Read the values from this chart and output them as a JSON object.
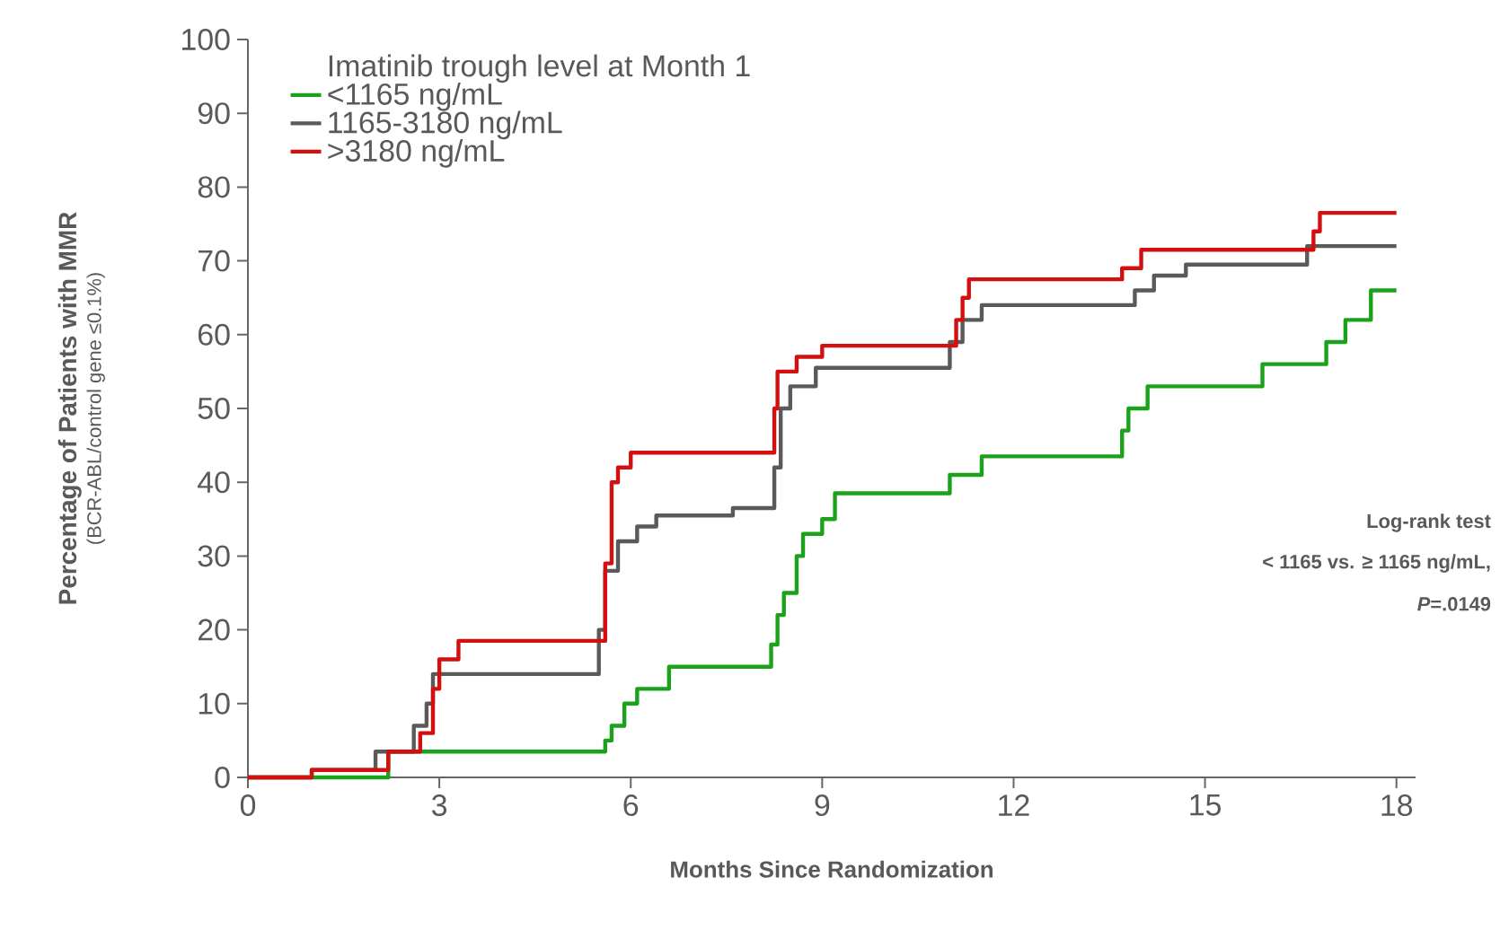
{
  "chart_data": {
    "type": "step",
    "xlabel": "Months Since Randomization",
    "ylabel": "Percentage of Patients with MMR",
    "legend_title": "Imatinib trough level at Month 1",
    "legend": "top left",
    "xlim": [
      0,
      18.3
    ],
    "ylim": [
      0,
      100
    ],
    "xticks": [
      0,
      3,
      6,
      9,
      12,
      15,
      18
    ],
    "yticks": [
      0,
      10,
      20,
      30,
      40,
      50,
      60,
      70,
      80,
      90,
      100
    ],
    "annotations": [
      "(BCR-ABL/control gene ≤0.1%)",
      "Log-rank test",
      "< 1165 vs. ≥ 1165 ng/mL,",
      "*P*=.0149"
    ],
    "series": [
      {
        "name": "<1165 ng/mL",
        "color": "#1aa31a",
        "x": [
          0,
          2.2,
          5.6,
          5.7,
          5.9,
          6.1,
          6.6,
          8.2,
          8.3,
          8.4,
          8.6,
          8.7,
          9.0,
          9.2,
          11.0,
          11.5,
          13.7,
          13.8,
          14.1,
          15.9,
          16.9,
          17.2,
          17.6,
          18
        ],
        "values": [
          0,
          3.5,
          5,
          7,
          10,
          12,
          15,
          18,
          22,
          25,
          30,
          33,
          35,
          38.5,
          41,
          43.5,
          47,
          50,
          53,
          56,
          59,
          62,
          66,
          66
        ]
      },
      {
        "name": "1165-3180 ng/mL",
        "color": "#5a5a5a",
        "x": [
          0,
          1.0,
          2.0,
          2.6,
          2.8,
          2.9,
          5.5,
          5.6,
          5.8,
          6.1,
          6.4,
          7.6,
          8.25,
          8.35,
          8.5,
          8.9,
          11.0,
          11.2,
          11.5,
          13.9,
          14.2,
          14.7,
          16.6,
          18
        ],
        "values": [
          0,
          1,
          3.5,
          7,
          10,
          14,
          20,
          28,
          32,
          34,
          35.5,
          36.5,
          42,
          50,
          53,
          55.5,
          59,
          62,
          64,
          66,
          68,
          69.5,
          72,
          72
        ]
      },
      {
        "name": ">3180 ng/mL",
        "color": "#d40f0f",
        "x": [
          0,
          1.0,
          2.2,
          2.7,
          2.9,
          3.0,
          3.3,
          5.6,
          5.7,
          5.8,
          6.0,
          8.25,
          8.3,
          8.6,
          9.0,
          11.1,
          11.2,
          11.3,
          13.7,
          14.0,
          16.7,
          16.8,
          18
        ],
        "values": [
          0,
          1,
          3.5,
          6,
          12,
          16,
          18.5,
          29,
          40,
          42,
          44,
          50,
          55,
          57,
          58.5,
          62,
          65,
          67.5,
          69,
          71.5,
          74,
          76.5,
          76.5
        ]
      }
    ]
  }
}
